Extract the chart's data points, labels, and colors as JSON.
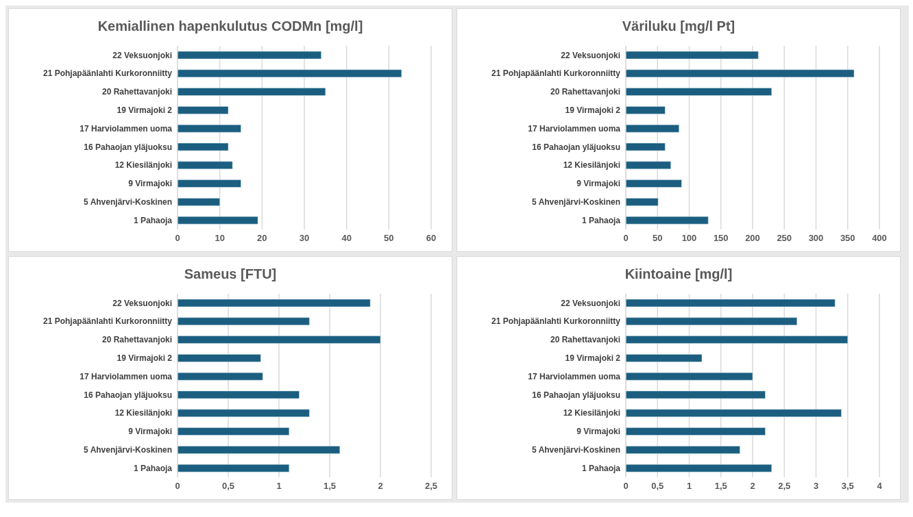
{
  "chart_data": [
    {
      "type": "bar",
      "orientation": "horizontal",
      "title": "Kemiallinen hapenkulutus CODMn [mg/l]",
      "categories": [
        "22 Veksuonjoki",
        "21 Pohjapäänlahti Kurkoronniitty",
        "20 Rahettavanjoki",
        "19 Virmajoki 2",
        "17 Harviolammen uoma",
        "16 Pahaojan yläjuoksu",
        "12 Kiesilänjoki",
        "9 Virmajoki",
        "5 Ahvenjärvi-Koskinen",
        "1 Pahaoja"
      ],
      "values": [
        34,
        53,
        35,
        12,
        15,
        12,
        13,
        15,
        10,
        19
      ],
      "color": "#1b5e80",
      "xlim": [
        0,
        60
      ],
      "xticks": [
        0,
        10,
        20,
        30,
        40,
        50,
        60
      ],
      "grid": "x",
      "legend": false
    },
    {
      "type": "bar",
      "orientation": "horizontal",
      "title": "Väriluku [mg/l Pt]",
      "categories": [
        "22 Veksuonjoki",
        "21 Pohjapäänlahti Kurkoronniitty",
        "20 Rahettavanjoki",
        "19 Virmajoki 2",
        "17 Harviolammen uoma",
        "16 Pahaojan yläjuoksu",
        "12 Kiesilänjoki",
        "9 Virmajoki",
        "5 Ahvenjärvi-Koskinen",
        "1 Pahaoja"
      ],
      "values": [
        209,
        360,
        230,
        62,
        84,
        62,
        71,
        88,
        51,
        130
      ],
      "color": "#1b5e80",
      "xlim": [
        0,
        400
      ],
      "xticks": [
        0,
        50,
        100,
        150,
        200,
        250,
        300,
        350,
        400
      ],
      "grid": "x",
      "legend": false
    },
    {
      "type": "bar",
      "orientation": "horizontal",
      "title": "Sameus [FTU]",
      "categories": [
        "22 Veksuonjoki",
        "21 Pohjapäänlahti Kurkoronniitty",
        "20 Rahettavanjoki",
        "19 Virmajoki 2",
        "17 Harviolammen uoma",
        "16 Pahaojan yläjuoksu",
        "12 Kiesilänjoki",
        "9 Virmajoki",
        "5 Ahvenjärvi-Koskinen",
        "1 Pahaoja"
      ],
      "values": [
        1.9,
        1.3,
        2,
        0.82,
        0.84,
        1.2,
        1.3,
        1.1,
        1.6,
        1.1
      ],
      "color": "#1b5e80",
      "xlim": [
        0,
        2.5
      ],
      "xticks": [
        0,
        {
          "value": 0.5,
          "label": "0,5"
        },
        1,
        {
          "value": 1.5,
          "label": "1,5"
        },
        2,
        {
          "value": 2.5,
          "label": "2,5"
        }
      ],
      "grid": "x",
      "legend": false
    },
    {
      "type": "bar",
      "orientation": "horizontal",
      "title": "Kiintoaine [mg/l]",
      "categories": [
        "22 Veksuonjoki",
        "21 Pohjapäänlahti Kurkoronniitty",
        "20 Rahettavanjoki",
        "19 Virmajoki 2",
        "17 Harviolammen uoma",
        "16 Pahaojan yläjuoksu",
        "12 Kiesilänjoki",
        "9 Virmajoki",
        "5 Ahvenjärvi-Koskinen",
        "1 Pahaoja"
      ],
      "values": [
        3.3,
        2.7,
        3.5,
        1.2,
        2,
        2.2,
        3.4,
        2.2,
        1.8,
        2.3
      ],
      "color": "#1b5e80",
      "xlim": [
        0,
        4
      ],
      "xticks": [
        0,
        {
          "value": 0.5,
          "label": "0,5"
        },
        1,
        {
          "value": 1.5,
          "label": "1,5"
        },
        2,
        {
          "value": 2.5,
          "label": "2,5"
        },
        3,
        {
          "value": 3.5,
          "label": "3,5"
        },
        4
      ],
      "grid": "x",
      "legend": false
    }
  ]
}
